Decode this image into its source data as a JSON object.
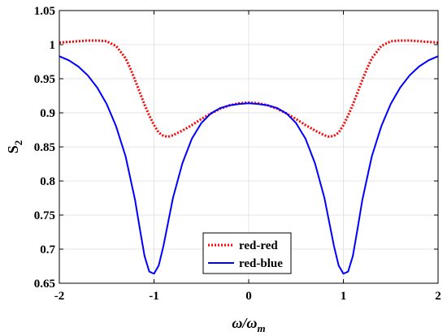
{
  "chart_data": {
    "type": "line",
    "xlabel": "ω/ω",
    "xlabel_sub": "m",
    "ylabel": "S",
    "ylabel_sub": "2",
    "xlim": [
      -2,
      2
    ],
    "ylim": [
      0.65,
      1.05
    ],
    "xticks": [
      "-2",
      "-1",
      "0",
      "1",
      "2"
    ],
    "yticks": [
      "0.65",
      "0.7",
      "0.75",
      "0.8",
      "0.85",
      "0.9",
      "0.95",
      "1",
      "1.05"
    ],
    "grid": true,
    "legend_position": "bottom-center",
    "series": [
      {
        "name": "red-red",
        "color": "#ff0000",
        "style": "dotted",
        "x": [
          -2.0,
          -1.9,
          -1.8,
          -1.7,
          -1.6,
          -1.5,
          -1.4,
          -1.3,
          -1.25,
          -1.2,
          -1.15,
          -1.1,
          -1.05,
          -1.0,
          -0.95,
          -0.9,
          -0.85,
          -0.8,
          -0.7,
          -0.6,
          -0.5,
          -0.4,
          -0.3,
          -0.2,
          -0.1,
          0.0,
          0.1,
          0.2,
          0.3,
          0.4,
          0.5,
          0.6,
          0.7,
          0.8,
          0.85,
          0.9,
          0.95,
          1.0,
          1.05,
          1.1,
          1.15,
          1.2,
          1.25,
          1.3,
          1.4,
          1.5,
          1.6,
          1.7,
          1.8,
          1.9,
          2.0
        ],
        "y": [
          1.003,
          1.004,
          1.005,
          1.006,
          1.006,
          1.005,
          0.998,
          0.98,
          0.965,
          0.948,
          0.93,
          0.912,
          0.896,
          0.882,
          0.871,
          0.866,
          0.865,
          0.867,
          0.874,
          0.882,
          0.891,
          0.899,
          0.906,
          0.911,
          0.914,
          0.915,
          0.914,
          0.911,
          0.906,
          0.899,
          0.891,
          0.882,
          0.874,
          0.867,
          0.865,
          0.866,
          0.871,
          0.882,
          0.896,
          0.912,
          0.93,
          0.948,
          0.965,
          0.98,
          0.998,
          1.005,
          1.006,
          1.006,
          1.005,
          1.004,
          1.003
        ]
      },
      {
        "name": "red-blue",
        "color": "#0000ff",
        "style": "solid",
        "x": [
          -2.0,
          -1.9,
          -1.8,
          -1.7,
          -1.6,
          -1.5,
          -1.4,
          -1.3,
          -1.2,
          -1.15,
          -1.1,
          -1.05,
          -1.0,
          -0.95,
          -0.9,
          -0.85,
          -0.8,
          -0.7,
          -0.6,
          -0.5,
          -0.4,
          -0.3,
          -0.2,
          -0.1,
          0.0,
          0.1,
          0.2,
          0.3,
          0.4,
          0.5,
          0.6,
          0.7,
          0.8,
          0.85,
          0.9,
          0.95,
          1.0,
          1.05,
          1.1,
          1.15,
          1.2,
          1.3,
          1.4,
          1.5,
          1.6,
          1.7,
          1.8,
          1.9,
          2.0
        ],
        "y": [
          0.983,
          0.977,
          0.968,
          0.955,
          0.937,
          0.913,
          0.88,
          0.836,
          0.772,
          0.73,
          0.69,
          0.667,
          0.664,
          0.676,
          0.705,
          0.74,
          0.775,
          0.826,
          0.862,
          0.885,
          0.899,
          0.907,
          0.911,
          0.913,
          0.914,
          0.913,
          0.911,
          0.907,
          0.899,
          0.885,
          0.862,
          0.826,
          0.775,
          0.74,
          0.705,
          0.676,
          0.664,
          0.667,
          0.69,
          0.73,
          0.772,
          0.836,
          0.88,
          0.913,
          0.937,
          0.955,
          0.968,
          0.977,
          0.983
        ]
      }
    ]
  }
}
